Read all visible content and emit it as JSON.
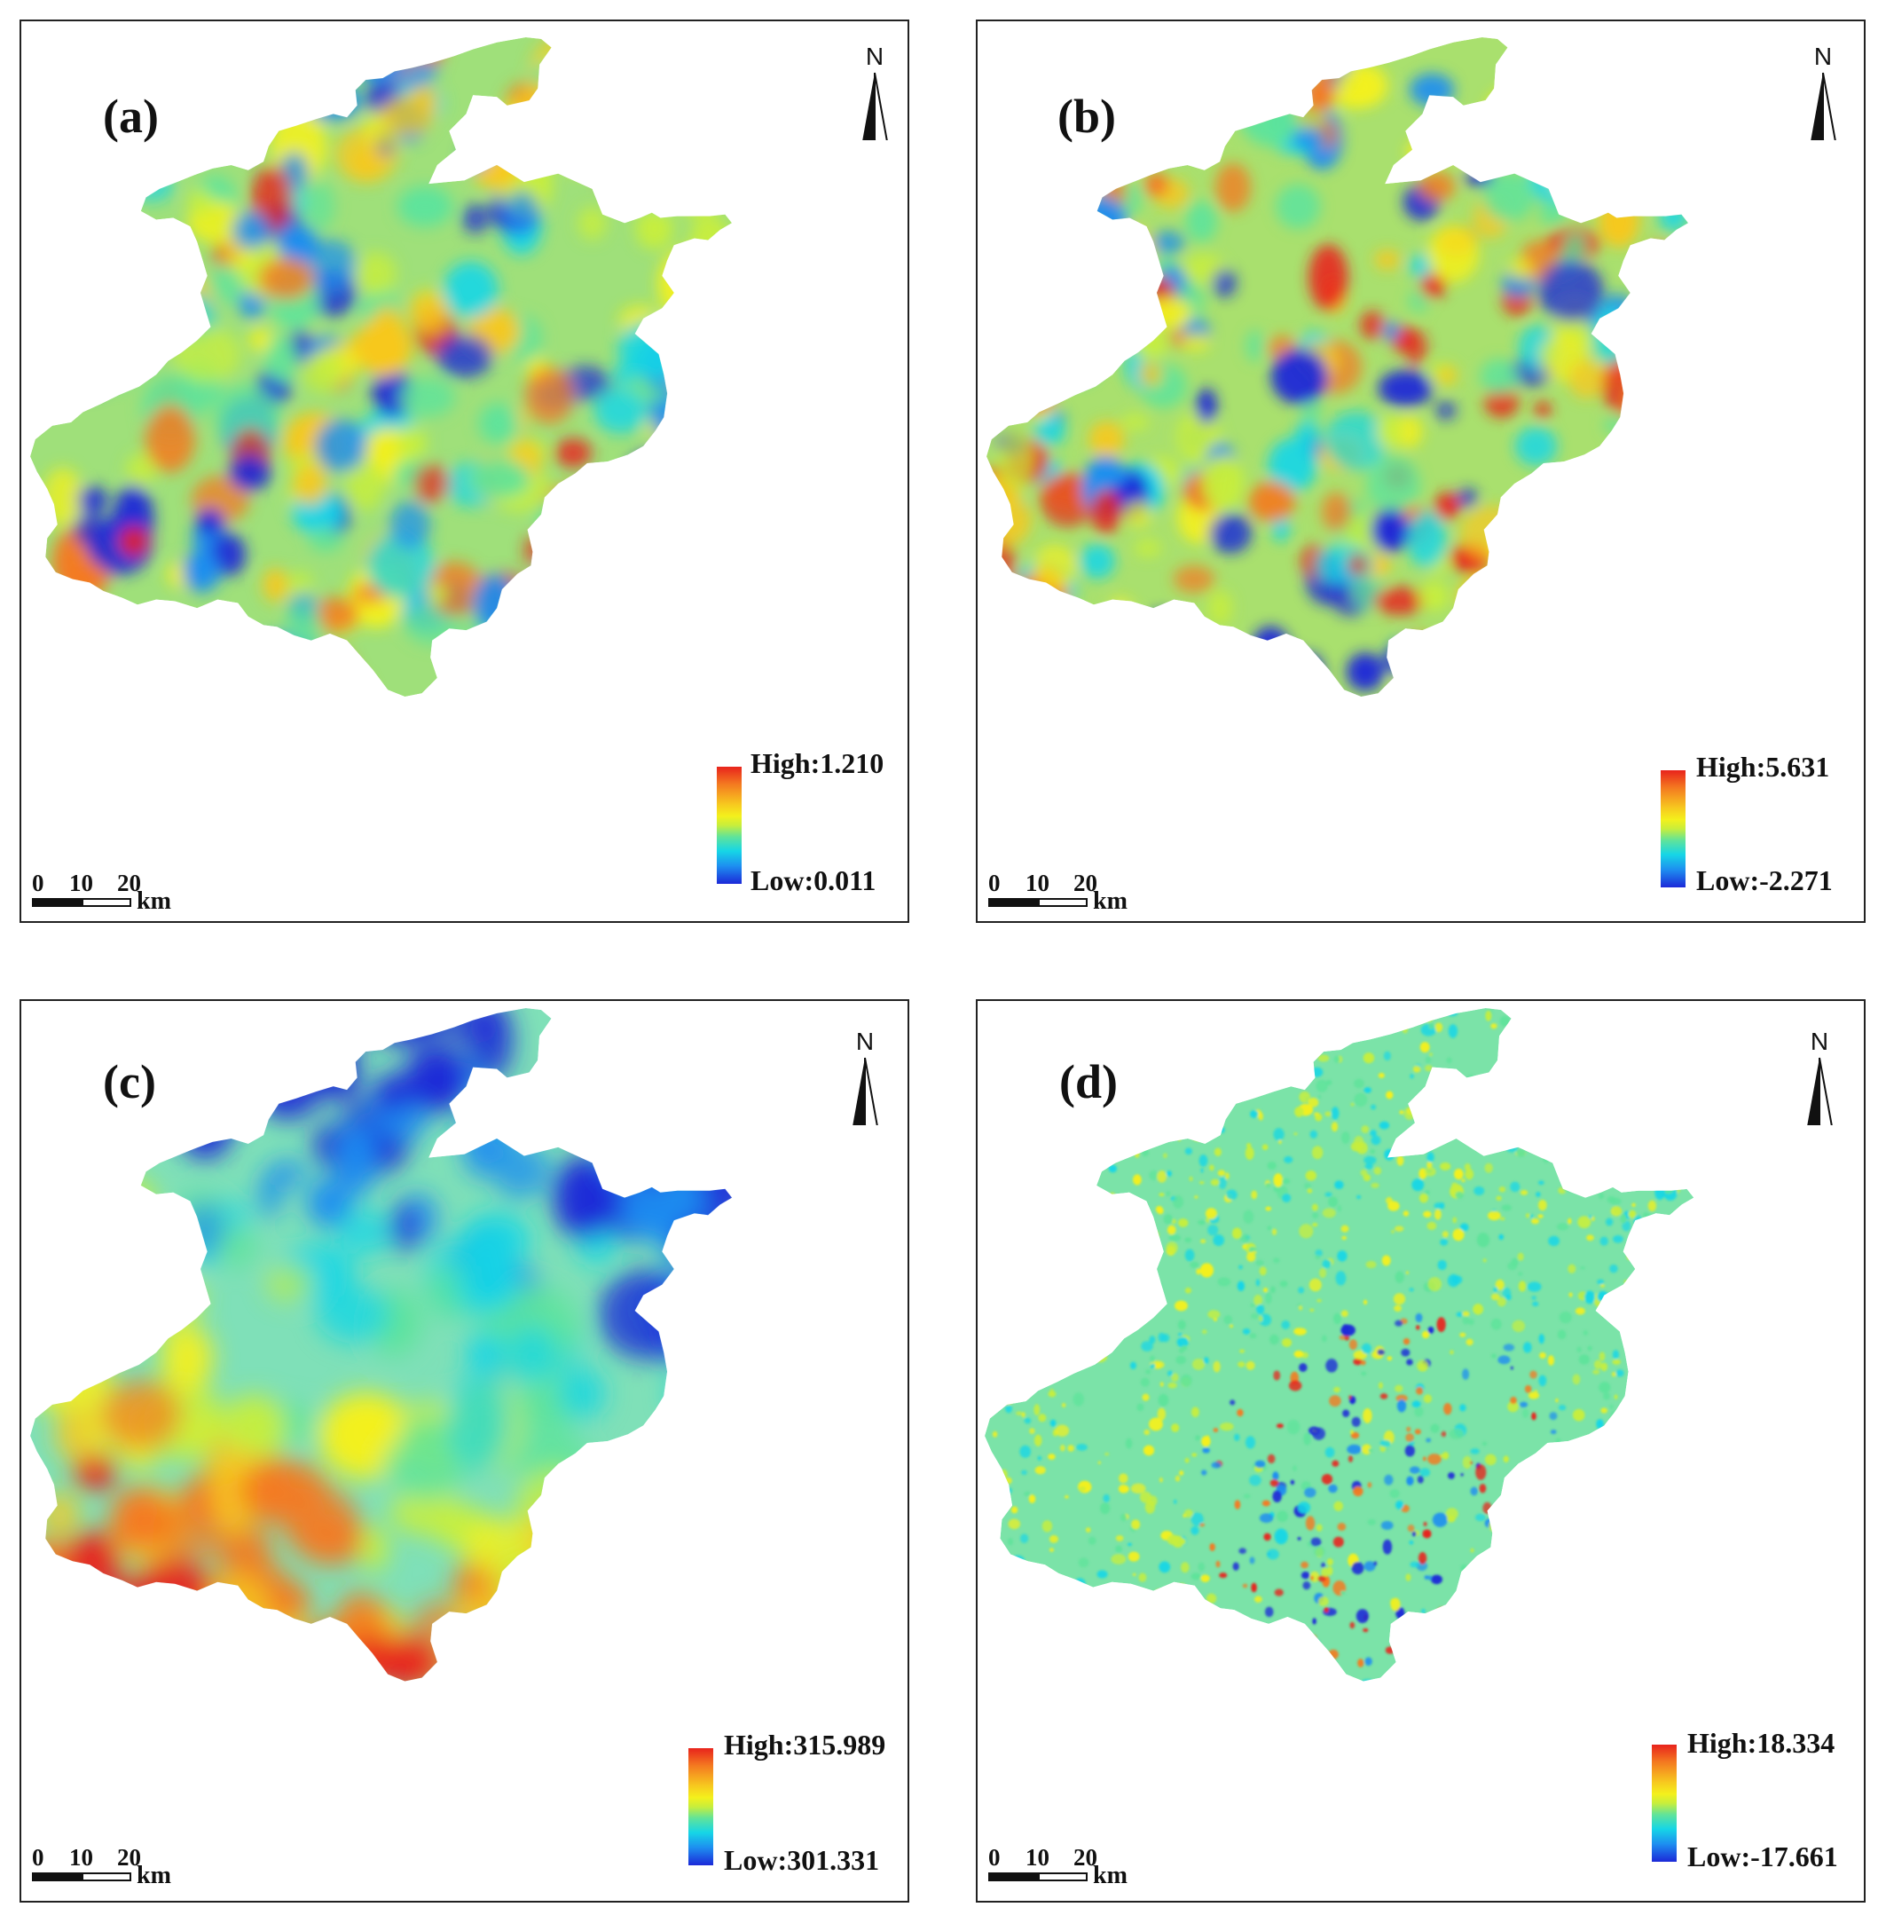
{
  "panels": [
    {
      "label": "(a)",
      "legend_high": "High:1.210",
      "legend_low": "Low:0.011",
      "north": "N",
      "scale": {
        "ticks": [
          "0",
          "10",
          "20"
        ],
        "unit": "km"
      }
    },
    {
      "label": "(b)",
      "legend_high": "High:5.631",
      "legend_low": "Low:-2.271",
      "north": "N",
      "scale": {
        "ticks": [
          "0",
          "10",
          "20"
        ],
        "unit": "km"
      }
    },
    {
      "label": "(c)",
      "legend_high": "High:315.989",
      "legend_low": "Low:301.331",
      "north": "N",
      "scale": {
        "ticks": [
          "0",
          "10",
          "20"
        ],
        "unit": "km"
      }
    },
    {
      "label": "(d)",
      "legend_high": "High:18.334",
      "legend_low": "Low:-17.661",
      "north": "N",
      "scale": {
        "ticks": [
          "0",
          "10",
          "20"
        ],
        "unit": "km"
      }
    }
  ],
  "colors": {
    "high": "#e8231c",
    "mid": "#f4f01c",
    "low": "#1c29d8",
    "border": "#222222"
  }
}
